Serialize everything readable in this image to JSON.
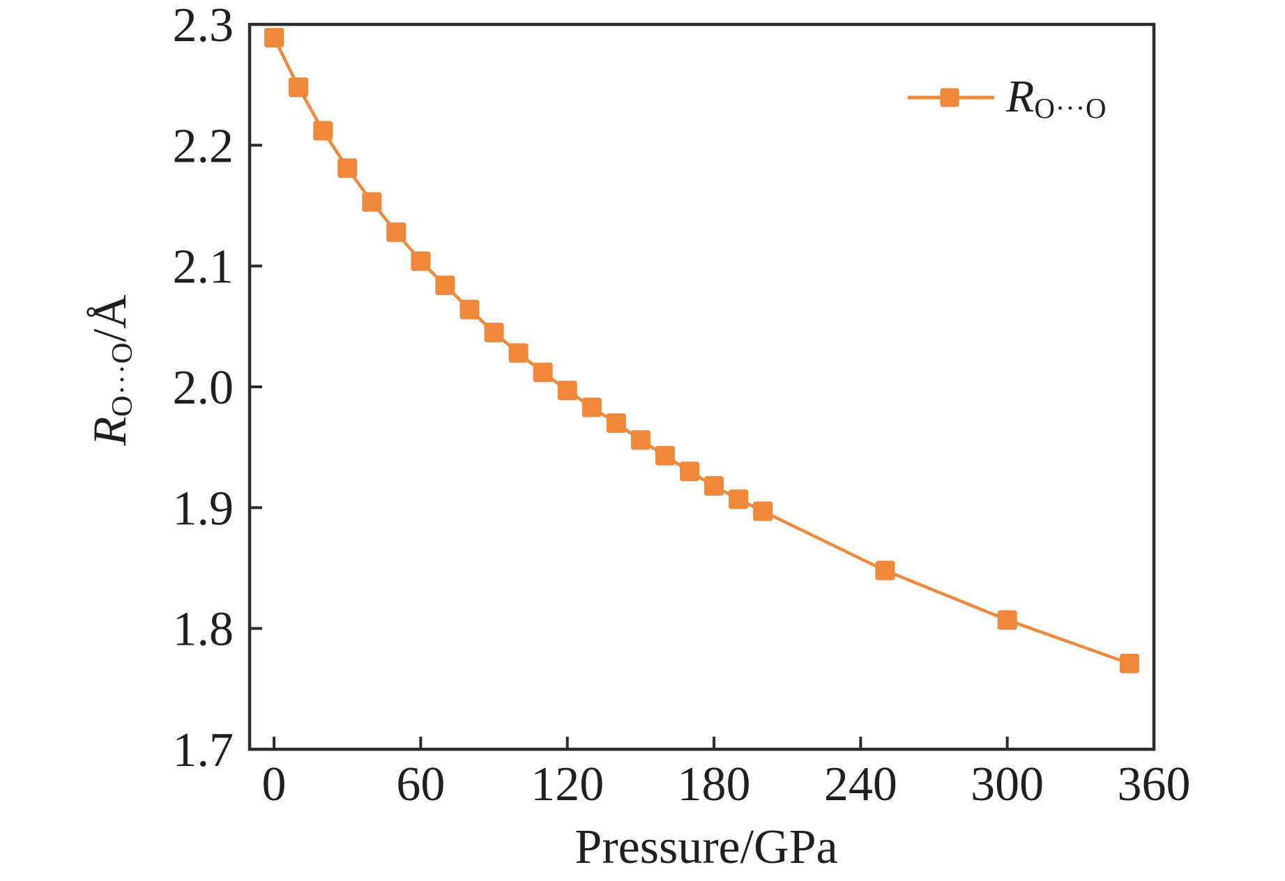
{
  "colors": {
    "series": "#F0883C",
    "axis": "#2b2b2b",
    "text": "#1f1f1f",
    "background": "#ffffff"
  },
  "labels": {
    "x_title": "Pressure/GPa",
    "y_title_main": "R",
    "y_title_sub": "O···O",
    "y_title_unit": "/Å"
  },
  "legend": {
    "main": "R",
    "sub": "O···O"
  },
  "chart_data": {
    "type": "line",
    "title": "",
    "xlabel": "Pressure/GPa",
    "ylabel": "R(O···O)/Å",
    "xlim": [
      -10,
      360
    ],
    "ylim": [
      1.7,
      2.3
    ],
    "grid": false,
    "legend_position": "top-right",
    "xticks": {
      "values": [
        0,
        60,
        120,
        180,
        240,
        300,
        360
      ],
      "labels": [
        "0",
        "60",
        "120",
        "180",
        "240",
        "300",
        "360"
      ]
    },
    "yticks": {
      "values": [
        2.3,
        2.2,
        2.1,
        2.0,
        1.9,
        1.8,
        1.7
      ],
      "labels": [
        "2.3",
        "2.2",
        "2.1",
        "2.0",
        "1.9",
        "1.8",
        "1.7"
      ]
    },
    "series": [
      {
        "name": "R O···O",
        "color": "#F0883C",
        "marker": "square",
        "marker_size": 28,
        "x": [
          0,
          10,
          20,
          30,
          40,
          50,
          60,
          70,
          80,
          90,
          100,
          110,
          120,
          130,
          140,
          150,
          160,
          170,
          180,
          190,
          200,
          250,
          300,
          350
        ],
        "y": [
          2.289,
          2.248,
          2.212,
          2.181,
          2.153,
          2.128,
          2.104,
          2.084,
          2.064,
          2.045,
          2.028,
          2.012,
          1.997,
          1.983,
          1.97,
          1.956,
          1.943,
          1.93,
          1.918,
          1.907,
          1.897,
          1.848,
          1.807,
          1.771
        ]
      }
    ]
  }
}
